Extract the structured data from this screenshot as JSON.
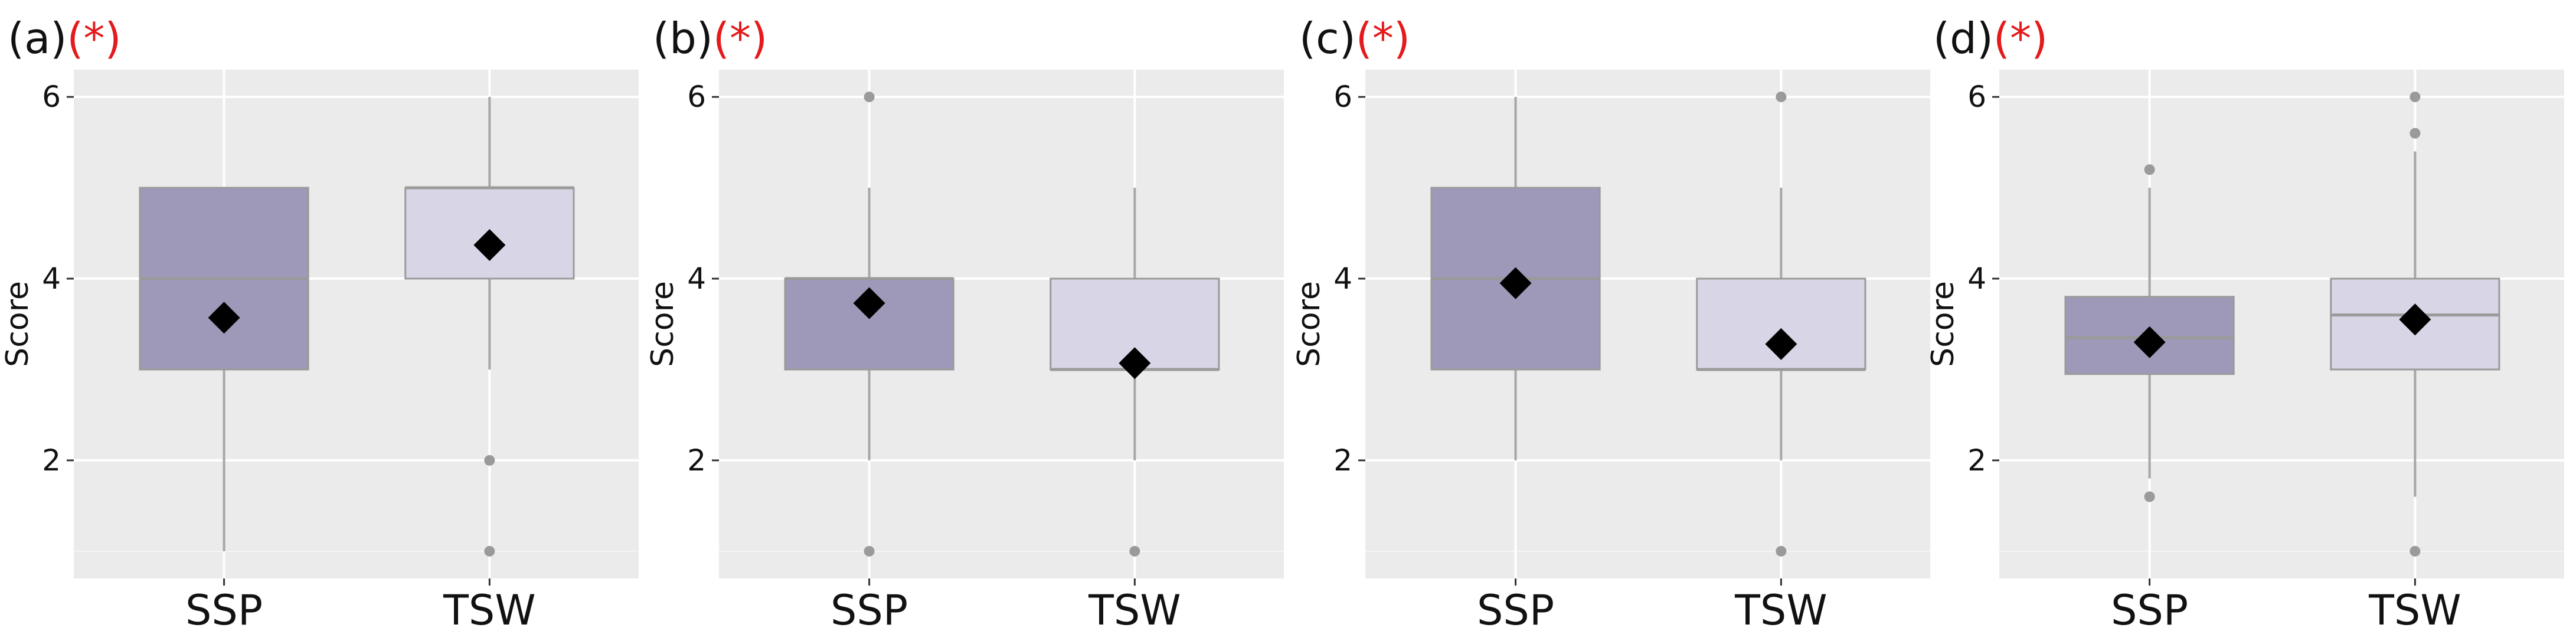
{
  "chart_data": [
    {
      "type": "box",
      "label": "(a)",
      "significance": "(*)",
      "ylabel": "Score",
      "ylim": [
        0.7,
        6.3
      ],
      "yticks": [
        2,
        4,
        6
      ],
      "grid": true,
      "categories": [
        "SSP",
        "TSW"
      ],
      "boxes": [
        {
          "category": "SSP",
          "min": 1,
          "q1": 3,
          "median": 4,
          "q3": 5,
          "max": 5,
          "mean": 3.57,
          "outliers": []
        },
        {
          "category": "TSW",
          "min": 3,
          "q1": 4,
          "median": 5,
          "q3": 5,
          "max": 6,
          "mean": 4.37,
          "outliers": [
            2,
            1
          ]
        }
      ]
    },
    {
      "type": "box",
      "label": "(b)",
      "significance": "(*)",
      "ylabel": "Score",
      "ylim": [
        0.7,
        6.3
      ],
      "yticks": [
        2,
        4,
        6
      ],
      "grid": true,
      "categories": [
        "SSP",
        "TSW"
      ],
      "boxes": [
        {
          "category": "SSP",
          "min": 2,
          "q1": 3,
          "median": 4,
          "q3": 4,
          "max": 5,
          "mean": 3.73,
          "outliers": [
            6,
            1
          ]
        },
        {
          "category": "TSW",
          "min": 2,
          "q1": 3,
          "median": 3,
          "q3": 4,
          "max": 5,
          "mean": 3.07,
          "outliers": [
            1
          ]
        }
      ]
    },
    {
      "type": "box",
      "label": "(c)",
      "significance": "(*)",
      "ylabel": "Score",
      "ylim": [
        0.7,
        6.3
      ],
      "yticks": [
        2,
        4,
        6
      ],
      "grid": true,
      "categories": [
        "SSP",
        "TSW"
      ],
      "boxes": [
        {
          "category": "SSP",
          "min": 2,
          "q1": 3,
          "median": 4,
          "q3": 5,
          "max": 6,
          "mean": 3.95,
          "outliers": []
        },
        {
          "category": "TSW",
          "min": 2,
          "q1": 3,
          "median": 3,
          "q3": 4,
          "max": 5,
          "mean": 3.28,
          "outliers": [
            6,
            1
          ]
        }
      ]
    },
    {
      "type": "box",
      "label": "(d)",
      "significance": "(*)",
      "ylabel": "Score",
      "ylim": [
        0.7,
        6.3
      ],
      "yticks": [
        2,
        4,
        6
      ],
      "grid": true,
      "categories": [
        "SSP",
        "TSW"
      ],
      "boxes": [
        {
          "category": "SSP",
          "min": 1.8,
          "q1": 2.95,
          "median": 3.35,
          "q3": 3.8,
          "max": 5.0,
          "mean": 3.3,
          "outliers": [
            5.2,
            1.6
          ]
        },
        {
          "category": "TSW",
          "min": 1.6,
          "q1": 3.0,
          "median": 3.6,
          "q3": 4.0,
          "max": 5.4,
          "mean": 3.55,
          "outliers": [
            6.0,
            5.6,
            1.0
          ]
        }
      ]
    }
  ],
  "colors": {
    "ssp_fill": "#9e99b9",
    "tsw_fill": "#d8d5e6",
    "box_stroke": "#9a9a9a",
    "whisker": "#a6a6a6",
    "median": "#9a9a9a",
    "outlier": "#9a9a9a",
    "mean_marker": "#000000",
    "panel_bg": "#ebebeb",
    "grid": "#ffffff",
    "significance": "#e41a1c",
    "text": "#111111"
  }
}
